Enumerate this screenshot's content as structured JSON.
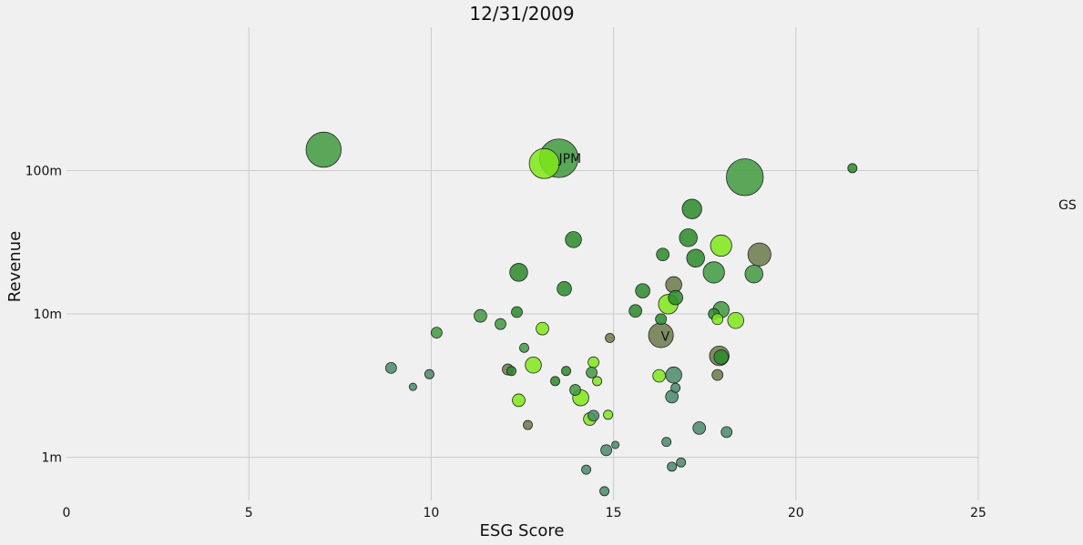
{
  "chart_data": {
    "type": "scatter",
    "title": "12/31/2009",
    "xlabel": "ESG Score",
    "ylabel": "Revenue",
    "xlim": [
      0,
      25
    ],
    "ylim": [
      500000,
      1000000000
    ],
    "yscale": "log",
    "xticks": [
      0,
      5,
      10,
      15,
      20,
      25
    ],
    "xtick_labels": [
      "0",
      "5",
      "10",
      "15",
      "20",
      "25"
    ],
    "yticks": [
      1000000,
      10000000,
      100000000
    ],
    "ytick_labels": [
      "1m",
      "10m",
      "100m"
    ],
    "grid": true,
    "legend": "none",
    "colors": {
      "dark_green": "#2a8a2a",
      "mid_green": "#3f9a3f",
      "lime": "#7fe819",
      "olive": "#6b7a4a",
      "teal": "#4a8a6a"
    },
    "annotations": [
      {
        "text": "JPM",
        "x": 13.5,
        "y": 122000000
      },
      {
        "text": "V",
        "x": 16.3,
        "y": 7000000
      },
      {
        "text": "GS",
        "x": 27.2,
        "y": 58000000
      }
    ],
    "points": [
      {
        "x": 7.05,
        "y": 140000000,
        "size": 18,
        "color": "mid_green"
      },
      {
        "x": 13.1,
        "y": 112000000,
        "size": 15,
        "color": "lime"
      },
      {
        "x": 13.5,
        "y": 122000000,
        "size": 20,
        "color": "mid_green"
      },
      {
        "x": 18.6,
        "y": 90000000,
        "size": 19,
        "color": "mid_green"
      },
      {
        "x": 21.55,
        "y": 104000000,
        "size": 3,
        "color": "dark_green"
      },
      {
        "x": 17.15,
        "y": 54000000,
        "size": 9,
        "color": "dark_green"
      },
      {
        "x": 13.9,
        "y": 33000000,
        "size": 7,
        "color": "dark_green"
      },
      {
        "x": 17.05,
        "y": 34000000,
        "size": 8,
        "color": "dark_green"
      },
      {
        "x": 17.95,
        "y": 30000000,
        "size": 10,
        "color": "lime"
      },
      {
        "x": 19.0,
        "y": 26000000,
        "size": 11,
        "color": "olive"
      },
      {
        "x": 16.35,
        "y": 26000000,
        "size": 5,
        "color": "dark_green"
      },
      {
        "x": 17.25,
        "y": 24500000,
        "size": 8,
        "color": "dark_green"
      },
      {
        "x": 12.4,
        "y": 19500000,
        "size": 8,
        "color": "dark_green"
      },
      {
        "x": 17.75,
        "y": 19500000,
        "size": 10,
        "color": "mid_green"
      },
      {
        "x": 18.85,
        "y": 19000000,
        "size": 8,
        "color": "mid_green"
      },
      {
        "x": 16.65,
        "y": 16000000,
        "size": 7,
        "color": "olive"
      },
      {
        "x": 13.65,
        "y": 15000000,
        "size": 6,
        "color": "dark_green"
      },
      {
        "x": 15.8,
        "y": 14500000,
        "size": 6,
        "color": "dark_green"
      },
      {
        "x": 16.7,
        "y": 13000000,
        "size": 6,
        "color": "dark_green"
      },
      {
        "x": 16.5,
        "y": 11700000,
        "size": 9,
        "color": "lime"
      },
      {
        "x": 17.95,
        "y": 10700000,
        "size": 7,
        "color": "mid_green"
      },
      {
        "x": 15.6,
        "y": 10500000,
        "size": 5,
        "color": "dark_green"
      },
      {
        "x": 12.35,
        "y": 10300000,
        "size": 4,
        "color": "dark_green"
      },
      {
        "x": 11.35,
        "y": 9700000,
        "size": 5,
        "color": "mid_green"
      },
      {
        "x": 17.75,
        "y": 10000000,
        "size": 4,
        "color": "dark_green"
      },
      {
        "x": 17.85,
        "y": 9200000,
        "size": 4,
        "color": "lime"
      },
      {
        "x": 16.3,
        "y": 9200000,
        "size": 4,
        "color": "dark_green"
      },
      {
        "x": 18.35,
        "y": 9000000,
        "size": 7,
        "color": "lime"
      },
      {
        "x": 11.9,
        "y": 8500000,
        "size": 4,
        "color": "mid_green"
      },
      {
        "x": 13.05,
        "y": 7900000,
        "size": 5,
        "color": "lime"
      },
      {
        "x": 10.15,
        "y": 7400000,
        "size": 4,
        "color": "mid_green"
      },
      {
        "x": 16.3,
        "y": 7100000,
        "size": 12,
        "color": "olive"
      },
      {
        "x": 14.9,
        "y": 6800000,
        "size": 3,
        "color": "olive"
      },
      {
        "x": 12.55,
        "y": 5800000,
        "size": 3,
        "color": "mid_green"
      },
      {
        "x": 17.9,
        "y": 5100000,
        "size": 9,
        "color": "olive"
      },
      {
        "x": 17.95,
        "y": 5000000,
        "size": 6,
        "color": "dark_green"
      },
      {
        "x": 12.8,
        "y": 4400000,
        "size": 7,
        "color": "lime"
      },
      {
        "x": 14.45,
        "y": 4600000,
        "size": 4,
        "color": "lime"
      },
      {
        "x": 8.9,
        "y": 4200000,
        "size": 4,
        "color": "teal"
      },
      {
        "x": 12.1,
        "y": 4100000,
        "size": 4,
        "color": "olive"
      },
      {
        "x": 12.2,
        "y": 4000000,
        "size": 3,
        "color": "dark_green"
      },
      {
        "x": 13.7,
        "y": 4000000,
        "size": 3,
        "color": "dark_green"
      },
      {
        "x": 9.95,
        "y": 3800000,
        "size": 3,
        "color": "teal"
      },
      {
        "x": 14.4,
        "y": 3900000,
        "size": 4,
        "color": "mid_green"
      },
      {
        "x": 16.25,
        "y": 3700000,
        "size": 5,
        "color": "lime"
      },
      {
        "x": 16.65,
        "y": 3750000,
        "size": 7,
        "color": "teal"
      },
      {
        "x": 17.85,
        "y": 3750000,
        "size": 4,
        "color": "olive"
      },
      {
        "x": 14.55,
        "y": 3400000,
        "size": 3,
        "color": "lime"
      },
      {
        "x": 13.4,
        "y": 3400000,
        "size": 3,
        "color": "dark_green"
      },
      {
        "x": 9.5,
        "y": 3100000,
        "size": 2,
        "color": "teal"
      },
      {
        "x": 13.95,
        "y": 2950000,
        "size": 4,
        "color": "mid_green"
      },
      {
        "x": 16.7,
        "y": 3050000,
        "size": 3,
        "color": "teal"
      },
      {
        "x": 14.1,
        "y": 2600000,
        "size": 7,
        "color": "lime"
      },
      {
        "x": 16.6,
        "y": 2650000,
        "size": 5,
        "color": "teal"
      },
      {
        "x": 12.4,
        "y": 2500000,
        "size": 5,
        "color": "lime"
      },
      {
        "x": 14.45,
        "y": 1950000,
        "size": 4,
        "color": "teal"
      },
      {
        "x": 14.85,
        "y": 1980000,
        "size": 3,
        "color": "lime"
      },
      {
        "x": 14.35,
        "y": 1850000,
        "size": 5,
        "color": "lime"
      },
      {
        "x": 12.65,
        "y": 1680000,
        "size": 3,
        "color": "olive"
      },
      {
        "x": 17.35,
        "y": 1600000,
        "size": 5,
        "color": "teal"
      },
      {
        "x": 18.1,
        "y": 1500000,
        "size": 4,
        "color": "teal"
      },
      {
        "x": 16.45,
        "y": 1280000,
        "size": 3,
        "color": "teal"
      },
      {
        "x": 15.05,
        "y": 1220000,
        "size": 2,
        "color": "teal"
      },
      {
        "x": 14.8,
        "y": 1120000,
        "size": 4,
        "color": "teal"
      },
      {
        "x": 16.85,
        "y": 920000,
        "size": 3,
        "color": "teal"
      },
      {
        "x": 16.6,
        "y": 860000,
        "size": 3,
        "color": "teal"
      },
      {
        "x": 14.25,
        "y": 820000,
        "size": 3,
        "color": "teal"
      },
      {
        "x": 14.75,
        "y": 580000,
        "size": 3,
        "color": "teal"
      }
    ]
  }
}
